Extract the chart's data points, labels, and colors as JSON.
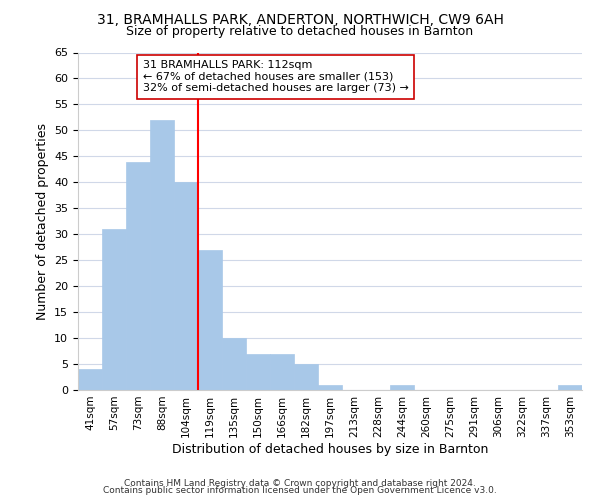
{
  "title": "31, BRAMHALLS PARK, ANDERTON, NORTHWICH, CW9 6AH",
  "subtitle": "Size of property relative to detached houses in Barnton",
  "xlabel": "Distribution of detached houses by size in Barnton",
  "ylabel": "Number of detached properties",
  "bar_labels": [
    "41sqm",
    "57sqm",
    "73sqm",
    "88sqm",
    "104sqm",
    "119sqm",
    "135sqm",
    "150sqm",
    "166sqm",
    "182sqm",
    "197sqm",
    "213sqm",
    "228sqm",
    "244sqm",
    "260sqm",
    "275sqm",
    "291sqm",
    "306sqm",
    "322sqm",
    "337sqm",
    "353sqm"
  ],
  "bar_values": [
    4,
    31,
    44,
    52,
    40,
    27,
    10,
    7,
    7,
    5,
    1,
    0,
    0,
    1,
    0,
    0,
    0,
    0,
    0,
    0,
    1
  ],
  "bar_color": "#a8c8e8",
  "bar_edge_color": "#a8c8e8",
  "vline_x": 4.5,
  "vline_color": "red",
  "annotation_title": "31 BRAMHALLS PARK: 112sqm",
  "annotation_line1": "← 67% of detached houses are smaller (153)",
  "annotation_line2": "32% of semi-detached houses are larger (73) →",
  "annotation_box_color": "white",
  "annotation_box_edge": "#cc0000",
  "ylim": [
    0,
    65
  ],
  "yticks": [
    0,
    5,
    10,
    15,
    20,
    25,
    30,
    35,
    40,
    45,
    50,
    55,
    60,
    65
  ],
  "footer1": "Contains HM Land Registry data © Crown copyright and database right 2024.",
  "footer2": "Contains public sector information licensed under the Open Government Licence v3.0.",
  "background_color": "#ffffff",
  "grid_color": "#d0d8e8",
  "title_fontsize": 10,
  "subtitle_fontsize": 9
}
